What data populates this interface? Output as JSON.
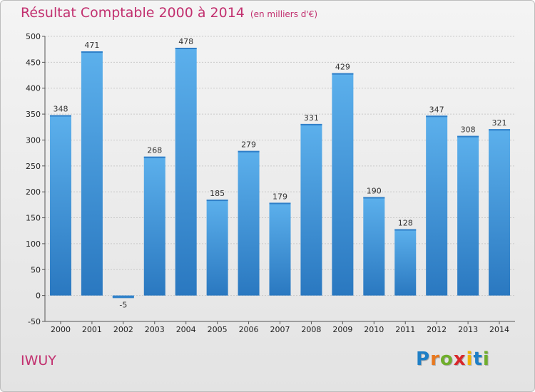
{
  "chart_data": {
    "type": "bar",
    "title": "Résultat Comptable 2000 à 2014",
    "unit_note": "(en milliers d'€)",
    "categories": [
      "2000",
      "2001",
      "2002",
      "2003",
      "2004",
      "2005",
      "2006",
      "2007",
      "2008",
      "2009",
      "2010",
      "2011",
      "2012",
      "2013",
      "2014"
    ],
    "values": [
      348,
      471,
      -5,
      268,
      478,
      185,
      279,
      179,
      331,
      429,
      190,
      128,
      347,
      308,
      321
    ],
    "value_labels": [
      "348",
      "471",
      "-5",
      "268",
      "478",
      "185",
      "279",
      "179",
      "331",
      "429",
      "190",
      "128",
      "347",
      "308",
      "321"
    ],
    "y_ticks": [
      -50,
      0,
      50,
      100,
      150,
      200,
      250,
      300,
      350,
      400,
      450,
      500
    ],
    "y_tick_labels": [
      "-50",
      "0",
      "50",
      "100",
      "150",
      "200",
      "250",
      "300",
      "350",
      "400",
      "450",
      "500"
    ],
    "ylim": [
      -50,
      500
    ],
    "grid": true,
    "xlabel": "",
    "ylabel": "",
    "bar_color": "#3a8fd6"
  },
  "commune": "IWUY",
  "logo": {
    "letters": [
      "P",
      "r",
      "o",
      "x",
      "i",
      "t",
      "i"
    ],
    "colors": [
      "#1f7fc6",
      "#e8781e",
      "#6fae2c",
      "#d8282b",
      "#f0b400",
      "#1f7fc6",
      "#6fae2c"
    ]
  },
  "colors": {
    "title": "#c2306f",
    "bar_top": "#5cb0ec",
    "bar_bottom": "#2a78c0"
  }
}
